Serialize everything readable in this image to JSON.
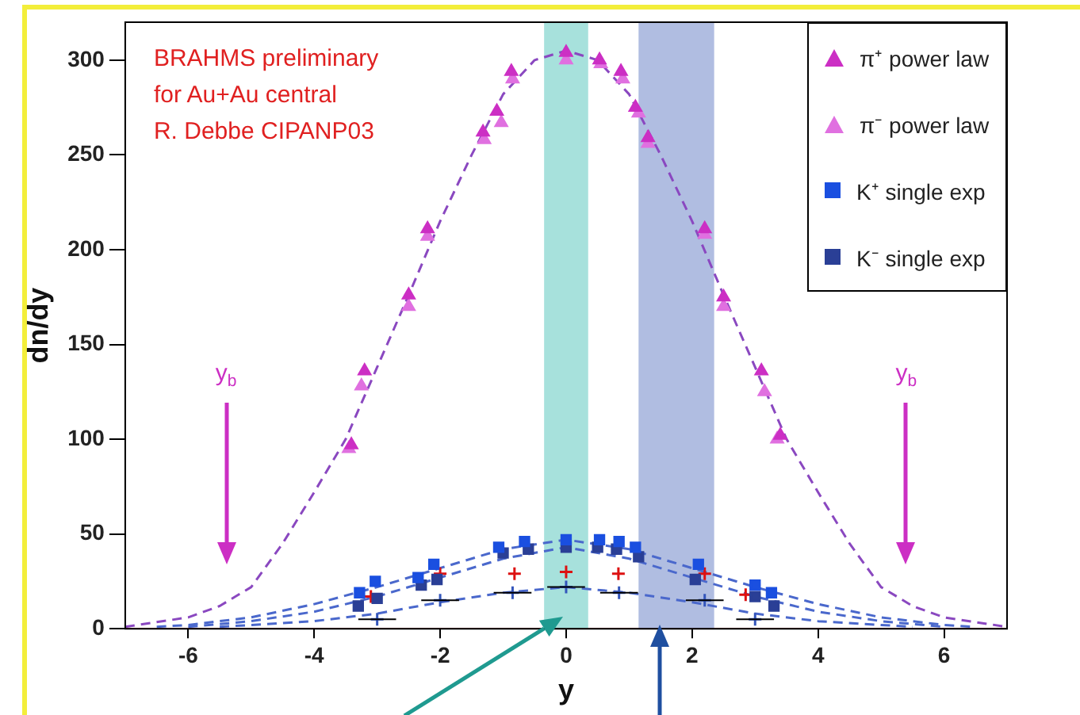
{
  "chart_data": {
    "type": "scatter",
    "xlabel": "y",
    "ylabel": "dn/dy",
    "xlim": [
      -7,
      7
    ],
    "xticks": [
      -6,
      -4,
      -2,
      0,
      2,
      4,
      6
    ],
    "ylim": [
      0,
      320
    ],
    "yticks": [
      0,
      50,
      100,
      150,
      200,
      250,
      300
    ],
    "grid": false,
    "legend": "top right",
    "series": [
      {
        "name": "π⁺ power law",
        "marker": "triangle",
        "color": "#cc2fc4",
        "x": [
          -3.41,
          -3.2,
          -2.5,
          -2.2,
          -1.32,
          -1.1,
          -0.87,
          0,
          0.53,
          0.87,
          1.1,
          1.3,
          2.2,
          2.5,
          3.1,
          3.4
        ],
        "values": [
          97,
          136,
          176,
          211,
          262,
          273,
          294,
          304,
          300,
          294,
          275,
          259,
          211,
          175,
          136,
          102
        ]
      },
      {
        "name": "π⁻ power law",
        "marker": "triangle",
        "color": "#e070e0",
        "x": [
          -3.45,
          -3.25,
          -2.5,
          -2.2,
          -1.3,
          -1.03,
          -0.85,
          0,
          0.55,
          0.9,
          1.15,
          1.3,
          2.2,
          2.5,
          3.15,
          3.35
        ],
        "values": [
          95,
          128,
          170,
          207,
          258,
          267,
          290,
          300,
          298,
          290,
          272,
          256,
          208,
          170,
          125,
          100
        ]
      },
      {
        "name": "K⁺ single exp",
        "marker": "square",
        "color": "#1a4fe0",
        "x": [
          -3.28,
          -3.03,
          -2.35,
          -2.1,
          -1.07,
          -0.66,
          0,
          0.53,
          0.84,
          1.1,
          2.1,
          3.0,
          3.26
        ],
        "values": [
          19,
          25,
          27,
          34,
          43,
          46,
          47,
          47,
          46,
          43,
          34,
          23,
          19
        ]
      },
      {
        "name": "K⁻ single exp",
        "marker": "square",
        "color": "#2a3f96",
        "x": [
          -3.3,
          -3.0,
          -2.3,
          -2.05,
          -1.0,
          -0.6,
          0,
          0.5,
          0.8,
          1.15,
          2.05,
          3.0,
          3.3
        ],
        "values": [
          12,
          16,
          23,
          26,
          40,
          42,
          43,
          43,
          42,
          38,
          26,
          17,
          12
        ]
      },
      {
        "marker": "cross",
        "color": "#dd1111",
        "x": [
          -3.1,
          -2.0,
          -0.82,
          0,
          0.83,
          2.2,
          2.85
        ],
        "values": [
          17,
          29,
          29,
          30,
          29,
          29,
          18
        ]
      },
      {
        "marker": "cross",
        "color": "#3355bb",
        "x": [
          -3.0,
          -2.0,
          -0.85,
          0,
          0.84,
          2.2,
          3.0
        ],
        "values": [
          5,
          15,
          19,
          22,
          19,
          15,
          5
        ],
        "xerrors": [
          0.3,
          0.3,
          0.3,
          0.3,
          0.3,
          0.3,
          0.3
        ]
      },
      {
        "type": "line",
        "marker": "none",
        "line_style": "dashed",
        "color": "#8a48c0",
        "x": [
          -7,
          -6,
          -5.5,
          -5,
          -4.5,
          -4,
          -3.5,
          -3,
          -2.5,
          -2,
          -1.5,
          -1,
          -0.5,
          0,
          0.5,
          1,
          1.5,
          2,
          2.5,
          3,
          3.5,
          4,
          4.5,
          5,
          5.5,
          6,
          7
        ],
        "values": [
          1,
          6,
          12,
          22,
          45,
          72,
          100,
          138,
          176,
          215,
          250,
          282,
          300,
          305,
          300,
          282,
          250,
          215,
          176,
          138,
          100,
          72,
          45,
          22,
          12,
          6,
          1
        ]
      },
      {
        "type": "line",
        "marker": "none",
        "line_style": "dashed",
        "color": "#4a68cc",
        "x": [
          -6.5,
          -6,
          -5,
          -4,
          -3,
          -2,
          -1,
          0,
          1,
          2,
          3,
          4,
          5,
          6,
          6.5
        ],
        "values": [
          1,
          2,
          6,
          13,
          22,
          32,
          42,
          47,
          42,
          32,
          22,
          13,
          6,
          2,
          1
        ]
      },
      {
        "type": "line",
        "marker": "none",
        "line_style": "dashed",
        "color": "#4a68cc",
        "x": [
          -6,
          -5,
          -4,
          -3,
          -2,
          -1,
          0,
          1,
          2,
          3,
          4,
          5,
          6
        ],
        "values": [
          1,
          4,
          9,
          17,
          27,
          37,
          43,
          37,
          27,
          17,
          9,
          4,
          1
        ]
      },
      {
        "type": "line",
        "marker": "none",
        "line_style": "dashed",
        "color": "#4a68cc",
        "x": [
          -5.5,
          -5,
          -4,
          -3,
          -2,
          -1,
          0,
          1,
          2,
          3,
          4,
          5,
          5.5
        ],
        "values": [
          1,
          2,
          4,
          8,
          14,
          19,
          22,
          19,
          14,
          8,
          4,
          2,
          1
        ]
      }
    ],
    "bands": [
      {
        "axis": "x",
        "from": -0.35,
        "to": 0.35,
        "color": "#5fc8c0"
      },
      {
        "axis": "x",
        "from": 1.15,
        "to": 2.35,
        "color": "#6f86c8"
      }
    ],
    "ref_lines": [
      {
        "axis": "x",
        "value": -5.4,
        "label": "y$_{b}$",
        "color": "#cc2fc4"
      },
      {
        "axis": "x",
        "value": 5.4,
        "label": "y$_{b}$",
        "color": "#cc2fc4"
      }
    ],
    "annotations": [
      "BRAHMS preliminary",
      "for Au+Au central",
      "R. Debbe CIPANP03"
    ]
  }
}
